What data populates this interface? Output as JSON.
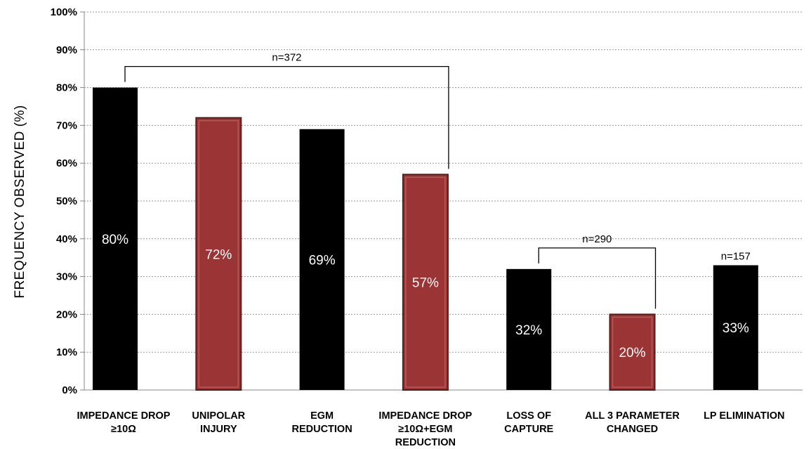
{
  "chart_data": {
    "type": "bar",
    "title": "",
    "ylabel": "FREQUENCY OBSERVED (%)",
    "xlabel": "",
    "ylim": [
      0,
      100
    ],
    "yticks": [
      "0%",
      "10%",
      "20%",
      "30%",
      "40%",
      "50%",
      "60%",
      "70%",
      "80%",
      "90%",
      "100%"
    ],
    "grid": true,
    "categories": [
      [
        "IMPEDANCE DROP",
        "≥10Ω"
      ],
      [
        "UNIPOLAR",
        "INJURY"
      ],
      [
        "EGM",
        "REDUCTION"
      ],
      [
        "IMPEDANCE DROP",
        "≥10Ω+EGM",
        "REDUCTION"
      ],
      [
        "LOSS OF",
        "CAPTURE"
      ],
      [
        "ALL 3 PARAMETER",
        "CHANGED"
      ],
      [
        "LP ELIMINATION"
      ]
    ],
    "values": [
      80,
      72,
      69,
      57,
      32,
      20,
      33
    ],
    "data_labels": [
      "80%",
      "72%",
      "69%",
      "57%",
      "32%",
      "20%",
      "33%"
    ],
    "bar_colors": [
      "#000000",
      "#9b3535",
      "#000000",
      "#9b3535",
      "#000000",
      "#9b3535",
      "#000000"
    ],
    "annotations": [
      {
        "label": "n=372",
        "from_index": 0,
        "to_index": 3
      },
      {
        "label": "n=290",
        "from_index": 4,
        "to_index": 5
      },
      {
        "label": "n=157",
        "at_index": 6
      }
    ]
  }
}
